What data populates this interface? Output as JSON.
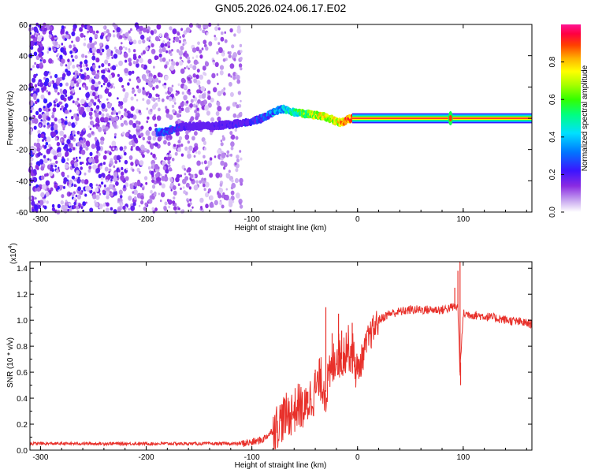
{
  "title": "GN05.2026.024.06.17.E02",
  "chart_data": [
    {
      "type": "heatmap",
      "xlabel": "Height of straight line (km)",
      "ylabel": "Frequency (Hz)",
      "xlim": [
        -310,
        165
      ],
      "ylim": [
        -60,
        60
      ],
      "xticks": [
        "-300",
        "-200",
        "-100",
        "0",
        "100"
      ],
      "yticks": [
        "-60",
        "-40",
        "-20",
        "0",
        "20",
        "40",
        "60"
      ],
      "colorbar": {
        "label": "Normalized spectral amplitude",
        "ticks": [
          "0.0",
          "0.2",
          "0.4",
          "0.6",
          "0.8"
        ],
        "range": [
          0,
          1
        ]
      },
      "track": {
        "x": [
          -185,
          -175,
          -160,
          -140,
          -120,
          -100,
          -90,
          -80,
          -70,
          -60,
          -50,
          -40,
          -30,
          -20,
          -15,
          -10,
          -5,
          0,
          50,
          85,
          88,
          165
        ],
        "y": [
          -9,
          -7,
          -5,
          -5,
          -4,
          -2,
          0,
          4,
          6,
          4,
          3,
          2,
          1,
          -2,
          -3,
          -1,
          0,
          0,
          0,
          0,
          0,
          0
        ],
        "peak_amplitude": [
          0.4,
          0.35,
          0.2,
          0.2,
          0.25,
          0.3,
          0.35,
          0.45,
          0.5,
          0.6,
          0.7,
          0.8,
          0.85,
          0.8,
          0.9,
          0.95,
          0.95,
          0.95,
          0.95,
          0.95,
          0.95,
          0.95
        ]
      },
      "noise_region_x": [
        -310,
        -110
      ]
    },
    {
      "type": "line",
      "xlabel": "Height of straight line (km)",
      "ylabel": "SNR (10 * v/v)",
      "y_multiplier": "(x10",
      "y_multiplier_exp": "4",
      "xlim": [
        -310,
        165
      ],
      "ylim": [
        0.0,
        1.45
      ],
      "xticks": [
        "-300",
        "-200",
        "-100",
        "0",
        "100"
      ],
      "yticks": [
        "0.0",
        "0.2",
        "0.4",
        "0.6",
        "0.8",
        "1.0",
        "1.2",
        "1.4"
      ],
      "series": [
        {
          "color": "#e8302a",
          "x": [
            -310,
            -200,
            -150,
            -110,
            -100,
            -90,
            -80,
            -70,
            -60,
            -55,
            -50,
            -45,
            -40,
            -35,
            -30,
            -25,
            -20,
            -15,
            -10,
            -5,
            0,
            10,
            20,
            30,
            50,
            80,
            90,
            95,
            97,
            100,
            120,
            165
          ],
          "y": [
            0.05,
            0.05,
            0.05,
            0.05,
            0.06,
            0.08,
            0.15,
            0.25,
            0.3,
            0.35,
            0.3,
            0.4,
            0.45,
            0.55,
            0.45,
            0.6,
            0.75,
            0.7,
            0.8,
            0.75,
            0.6,
            0.85,
            1.0,
            1.05,
            1.08,
            1.08,
            1.1,
            1.1,
            0.6,
            1.05,
            1.03,
            0.97
          ],
          "spikes": [
            {
              "x": -72,
              "y": 0.35
            },
            {
              "x": -60,
              "y": 0.35
            },
            {
              "x": -47,
              "y": 0.45
            },
            {
              "x": -40,
              "y": 0.62
            },
            {
              "x": -30,
              "y": 1.1
            },
            {
              "x": -24,
              "y": 0.9
            },
            {
              "x": -18,
              "y": 1.05
            },
            {
              "x": -15,
              "y": 0.92
            },
            {
              "x": -5,
              "y": 0.98
            },
            {
              "x": 0,
              "y": 0.72
            },
            {
              "x": 92,
              "y": 1.25
            },
            {
              "x": 95,
              "y": 1.38
            },
            {
              "x": 97,
              "y": 1.45
            },
            {
              "x": 97.5,
              "y": 0.5
            }
          ]
        }
      ]
    }
  ]
}
